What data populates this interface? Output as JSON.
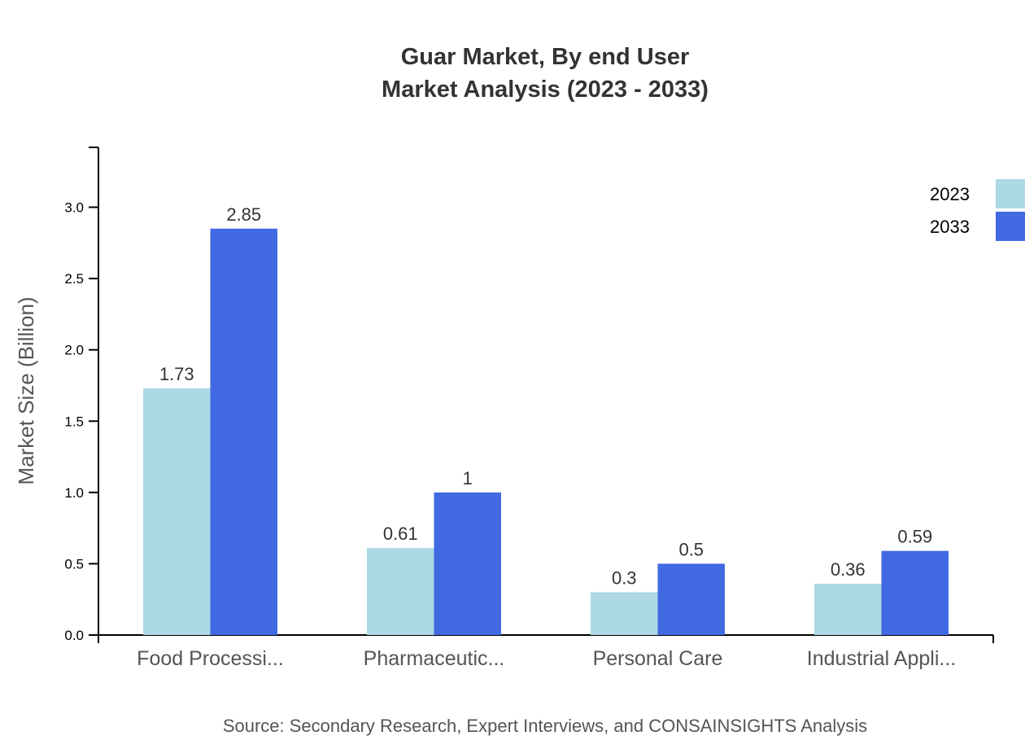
{
  "chart_data": {
    "type": "bar",
    "title": [
      "Guar Market, By end User",
      "Market Analysis (2023 - 2033)"
    ],
    "xlabel": "",
    "ylabel": "Market Size (Billion)",
    "ylim": [
      0,
      3.42
    ],
    "yticks": [
      "0.0",
      "0.5",
      "1.0",
      "1.5",
      "2.0",
      "2.5",
      "3.0"
    ],
    "categories": [
      "Food Processi...",
      "Pharmaceutic...",
      "Personal Care",
      "Industrial Appli..."
    ],
    "series": [
      {
        "name": "2023",
        "color": "#add8e6",
        "values": [
          1.73,
          0.61,
          0.3,
          0.36
        ],
        "labels": [
          "1.73",
          "0.61",
          "0.3",
          "0.36"
        ]
      },
      {
        "name": "2033",
        "color": "#4169e1",
        "values": [
          2.85,
          1,
          0.5,
          0.59
        ],
        "labels": [
          "2.85",
          "1",
          "0.5",
          "0.59"
        ]
      }
    ],
    "legend": "top-right",
    "grid": false
  },
  "source": "Source: Secondary Research, Expert Interviews, and CONSAINSIGHTS Analysis"
}
